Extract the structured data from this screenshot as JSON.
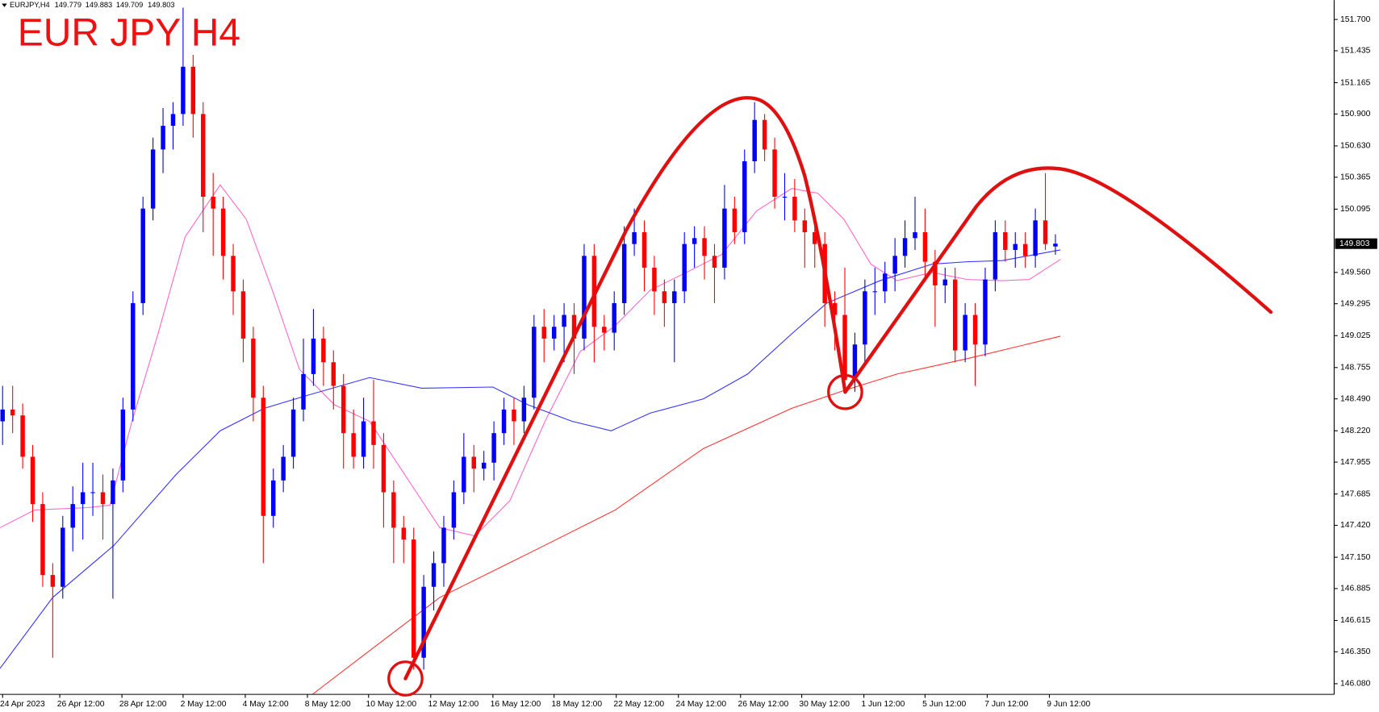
{
  "chart_data": {
    "type": "candlestick",
    "title": "EUR JPY H4",
    "symbol": "EURJPY,H4",
    "up_color": "#0000ff",
    "down_color": "#ff0000",
    "open": [
      148.3,
      148.4,
      148.35,
      148.0,
      147.6,
      147.0,
      146.9,
      147.4,
      147.6,
      147.7,
      147.7,
      147.6,
      147.8,
      148.4,
      149.3,
      150.1,
      150.6,
      150.8,
      150.9,
      151.3,
      150.9,
      150.2,
      150.1,
      149.7,
      149.4,
      149.0,
      148.5,
      147.5,
      147.8,
      148.0,
      148.4,
      148.7,
      149.0,
      148.8,
      148.6,
      148.2,
      148.0,
      148.3,
      148.1,
      147.7,
      147.4,
      147.3,
      146.3,
      146.9,
      147.1,
      147.4,
      147.7,
      148.0,
      147.9,
      147.95,
      148.2,
      148.4,
      148.3,
      148.5,
      149.1,
      149.0,
      149.1,
      149.2,
      149.0,
      149.7,
      149.1,
      149.05,
      149.3,
      149.8,
      149.9,
      149.6,
      149.4,
      149.3,
      149.4,
      149.8,
      149.85,
      149.7,
      149.6,
      150.1,
      149.9,
      150.5,
      150.85,
      150.6,
      150.2,
      150.2,
      150.0,
      149.9,
      149.8,
      149.3,
      149.2,
      148.65,
      148.95,
      149.4,
      149.4,
      149.55,
      149.7,
      149.85,
      149.9,
      149.65,
      149.45,
      149.5,
      148.9,
      149.2,
      148.95,
      149.5,
      149.9,
      149.75,
      149.8,
      149.7,
      150.0,
      149.779
    ],
    "high": [
      148.6,
      148.6,
      148.45,
      148.1,
      147.7,
      147.1,
      147.5,
      147.75,
      147.95,
      147.95,
      147.85,
      147.9,
      148.5,
      149.4,
      150.2,
      150.7,
      150.95,
      151.0,
      151.8,
      151.4,
      151.0,
      150.4,
      150.2,
      149.8,
      149.5,
      149.1,
      148.6,
      147.9,
      148.1,
      148.5,
      149.0,
      149.25,
      149.1,
      148.9,
      148.7,
      148.4,
      148.5,
      148.65,
      148.2,
      147.8,
      147.5,
      147.4,
      147.0,
      147.2,
      147.5,
      147.8,
      148.2,
      148.1,
      148.05,
      148.3,
      148.5,
      148.5,
      148.6,
      149.2,
      149.25,
      149.2,
      149.3,
      149.3,
      149.8,
      149.8,
      149.2,
      149.4,
      149.95,
      150.1,
      150.0,
      149.7,
      149.5,
      149.5,
      149.9,
      149.95,
      149.95,
      149.8,
      150.3,
      150.2,
      150.6,
      151.0,
      150.9,
      150.7,
      150.4,
      150.35,
      150.1,
      150.0,
      149.9,
      149.4,
      149.6,
      149.05,
      149.5,
      149.6,
      149.65,
      149.85,
      150.0,
      150.2,
      150.1,
      149.75,
      149.6,
      149.6,
      149.3,
      149.3,
      149.6,
      150.0,
      150.0,
      149.9,
      149.9,
      150.1,
      150.4,
      149.883
    ],
    "low": [
      148.1,
      148.2,
      147.9,
      147.45,
      146.9,
      146.3,
      146.8,
      147.2,
      147.3,
      147.5,
      147.3,
      146.8,
      147.7,
      148.3,
      149.2,
      150.0,
      150.4,
      150.6,
      150.8,
      150.7,
      149.9,
      149.7,
      149.5,
      149.2,
      148.8,
      148.3,
      147.1,
      147.4,
      147.7,
      147.9,
      148.3,
      148.6,
      148.6,
      148.4,
      147.9,
      147.9,
      147.9,
      147.9,
      147.4,
      147.1,
      147.1,
      146.2,
      146.2,
      146.7,
      146.9,
      147.3,
      147.6,
      147.7,
      147.8,
      147.8,
      148.1,
      148.1,
      148.2,
      148.4,
      148.8,
      148.9,
      148.8,
      148.7,
      148.9,
      148.8,
      148.9,
      148.9,
      149.2,
      149.7,
      149.4,
      149.2,
      149.1,
      148.8,
      149.3,
      149.6,
      149.5,
      149.3,
      149.5,
      149.8,
      149.8,
      150.4,
      150.5,
      150.1,
      150.0,
      149.9,
      149.6,
      149.6,
      149.1,
      148.9,
      148.55,
      148.55,
      148.8,
      149.2,
      149.3,
      149.4,
      149.6,
      149.75,
      149.5,
      149.1,
      149.3,
      148.8,
      148.8,
      148.6,
      148.85,
      149.4,
      149.65,
      149.6,
      149.6,
      149.6,
      149.75,
      149.709
    ],
    "close": [
      148.4,
      148.35,
      148.0,
      147.6,
      147.0,
      146.9,
      147.4,
      147.6,
      147.7,
      147.7,
      147.6,
      147.8,
      148.4,
      149.3,
      150.1,
      150.6,
      150.8,
      150.9,
      151.3,
      150.9,
      150.2,
      150.1,
      149.7,
      149.4,
      149.0,
      148.5,
      147.5,
      147.8,
      148.0,
      148.4,
      148.7,
      149.0,
      148.8,
      148.6,
      148.2,
      148.0,
      148.3,
      148.1,
      147.7,
      147.4,
      147.3,
      146.3,
      146.9,
      147.1,
      147.4,
      147.7,
      148.0,
      147.9,
      147.95,
      148.2,
      148.4,
      148.3,
      148.5,
      149.1,
      149.0,
      149.1,
      149.2,
      149.0,
      149.7,
      149.1,
      149.05,
      149.3,
      149.8,
      149.9,
      149.6,
      149.4,
      149.3,
      149.4,
      149.8,
      149.85,
      149.7,
      149.6,
      150.1,
      149.9,
      150.5,
      150.85,
      150.6,
      150.2,
      150.2,
      150.0,
      149.9,
      149.8,
      149.3,
      149.2,
      148.65,
      148.95,
      149.4,
      149.4,
      149.55,
      149.7,
      149.85,
      149.9,
      149.65,
      149.45,
      149.5,
      148.9,
      149.2,
      148.95,
      149.5,
      149.9,
      149.75,
      149.8,
      149.7,
      150.0,
      149.8,
      149.803
    ],
    "lines": [
      {
        "color": "#ff66cc",
        "x": [
          -0.26,
          3.2,
          8.5,
          10.7,
          12.9,
          15.5,
          18.2,
          21.7,
          24.3,
          26.9,
          29.6,
          33.1,
          36.6,
          40.1,
          43.6,
          47.1,
          50.6,
          54.1,
          57.6,
          61.1,
          64.6,
          68.2,
          71.7,
          75.2,
          78.7,
          81.3,
          83.9,
          86.6,
          89.2,
          92.7,
          96.2,
          99.7,
          102.4,
          105.5
        ],
        "values": [
          147.4,
          147.55,
          147.57,
          147.59,
          148.3,
          149.04,
          149.86,
          150.3,
          150.01,
          149.41,
          148.74,
          148.44,
          148.3,
          147.85,
          147.4,
          147.33,
          147.63,
          148.3,
          148.89,
          149.11,
          149.41,
          149.56,
          149.71,
          150.08,
          150.27,
          150.23,
          150.01,
          149.63,
          149.49,
          149.56,
          149.5,
          149.49,
          149.5,
          149.67
        ]
      },
      {
        "color": "#3333ff",
        "x": [
          -0.26,
          5.0,
          11.1,
          17.3,
          21.7,
          26.1,
          30.4,
          36.6,
          41.8,
          48.9,
          52.4,
          56.8,
          60.7,
          64.6,
          69.9,
          74.3,
          78.7,
          82.2,
          87.5,
          92.7,
          96.2,
          99.7,
          105.5
        ],
        "values": [
          146.21,
          146.81,
          147.25,
          147.85,
          148.22,
          148.41,
          148.52,
          148.67,
          148.58,
          148.59,
          148.44,
          148.3,
          148.22,
          148.37,
          148.49,
          148.7,
          149.04,
          149.3,
          149.49,
          149.63,
          149.65,
          149.66,
          149.75
        ]
      },
      {
        "color": "#ff3333",
        "x": [
          30.9,
          36.6,
          43.6,
          52.4,
          61.1,
          69.9,
          78.7,
          83.9,
          89.2,
          96.2,
          105.5
        ],
        "values": [
          145.99,
          146.36,
          146.81,
          147.18,
          147.55,
          148.07,
          148.41,
          148.56,
          148.7,
          148.83,
          149.02
        ]
      }
    ],
    "xlim": [
      -0.26,
      132.8
    ],
    "ylim": [
      145.99,
      151.864
    ],
    "xticks": [
      {
        "value": 0,
        "label": "24 Apr 2023"
      },
      {
        "value": 5.7,
        "label": "26 Apr 12:00"
      },
      {
        "value": 11.9,
        "label": "28 Apr 12:00"
      },
      {
        "value": 18.0,
        "label": "2 May 12:00"
      },
      {
        "value": 24.2,
        "label": "4 May 12:00"
      },
      {
        "value": 30.4,
        "label": "8 May 12:00"
      },
      {
        "value": 36.5,
        "label": "10 May 12:00"
      },
      {
        "value": 42.7,
        "label": "12 May 12:00"
      },
      {
        "value": 48.9,
        "label": "16 May 12:00"
      },
      {
        "value": 55.0,
        "label": "18 May 12:00"
      },
      {
        "value": 61.2,
        "label": "22 May 12:00"
      },
      {
        "value": 67.4,
        "label": "24 May 12:00"
      },
      {
        "value": 73.6,
        "label": "26 May 12:00"
      },
      {
        "value": 79.7,
        "label": "30 May 12:00"
      },
      {
        "value": 85.9,
        "label": "1 Jun 12:00"
      },
      {
        "value": 92.0,
        "label": "5 Jun 12:00"
      },
      {
        "value": 98.2,
        "label": "7 Jun 12:00"
      },
      {
        "value": 104.4,
        "label": "9 Jun 12:00"
      }
    ],
    "yticks": [
      {
        "value": 151.7,
        "label": "151.700"
      },
      {
        "value": 151.435,
        "label": "151.435"
      },
      {
        "value": 151.165,
        "label": "151.165"
      },
      {
        "value": 150.9,
        "label": "150.900"
      },
      {
        "value": 150.63,
        "label": "150.630"
      },
      {
        "value": 150.365,
        "label": "150.365"
      },
      {
        "value": 150.095,
        "label": "150.095"
      },
      {
        "value": 149.56,
        "label": "149.560"
      },
      {
        "value": 149.295,
        "label": "149.295"
      },
      {
        "value": 149.025,
        "label": "149.025"
      },
      {
        "value": 148.755,
        "label": "148.755"
      },
      {
        "value": 148.49,
        "label": "148.490"
      },
      {
        "value": 148.22,
        "label": "148.220"
      },
      {
        "value": 147.955,
        "label": "147.955"
      },
      {
        "value": 147.685,
        "label": "147.685"
      },
      {
        "value": 147.42,
        "label": "147.420"
      },
      {
        "value": 147.15,
        "label": "147.150"
      },
      {
        "value": 146.885,
        "label": "146.885"
      },
      {
        "value": 146.615,
        "label": "146.615"
      },
      {
        "value": 146.35,
        "label": "146.350"
      },
      {
        "value": 146.08,
        "label": "146.080"
      }
    ]
  }
}
